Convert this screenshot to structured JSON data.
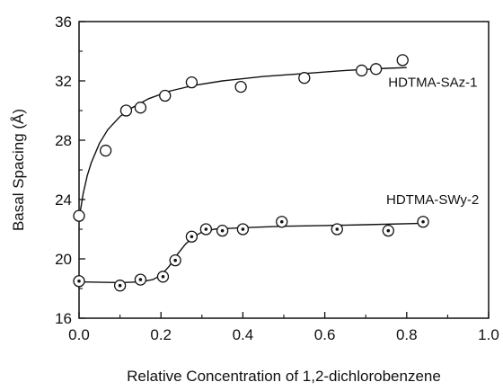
{
  "chart_data": {
    "type": "scatter",
    "title": "",
    "xlabel": "Relative Concentration of 1,2-dichlorobenzene",
    "ylabel": "Basal Spacing (Å)",
    "xlim": [
      0.0,
      1.0
    ],
    "ylim": [
      16,
      36
    ],
    "x_ticks": [
      0.0,
      0.2,
      0.4,
      0.6,
      0.8,
      1.0
    ],
    "x_tick_labels": [
      "0.0",
      "0.2",
      "0.4",
      "0.6",
      "0.8",
      "1.0"
    ],
    "y_ticks": [
      16,
      20,
      24,
      28,
      32,
      36
    ],
    "y_tick_labels": [
      "16",
      "20",
      "24",
      "28",
      "32",
      "36"
    ],
    "grid": false,
    "legend": "none",
    "series": [
      {
        "name": "HDTMA-SAz-1",
        "marker": "open-circle",
        "points": [
          [
            0.0,
            22.9
          ],
          [
            0.065,
            27.3
          ],
          [
            0.115,
            30.0
          ],
          [
            0.15,
            30.2
          ],
          [
            0.21,
            31.0
          ],
          [
            0.275,
            31.9
          ],
          [
            0.395,
            31.6
          ],
          [
            0.55,
            32.2
          ],
          [
            0.69,
            32.7
          ],
          [
            0.725,
            32.8
          ],
          [
            0.79,
            33.4
          ]
        ],
        "fit_curve": [
          [
            0.0,
            22.7
          ],
          [
            0.01,
            24.4
          ],
          [
            0.02,
            25.6
          ],
          [
            0.03,
            26.5
          ],
          [
            0.05,
            27.8
          ],
          [
            0.07,
            28.7
          ],
          [
            0.1,
            29.6
          ],
          [
            0.13,
            30.2
          ],
          [
            0.17,
            30.8
          ],
          [
            0.22,
            31.3
          ],
          [
            0.28,
            31.7
          ],
          [
            0.35,
            32.0
          ],
          [
            0.45,
            32.3
          ],
          [
            0.55,
            32.5
          ],
          [
            0.65,
            32.7
          ],
          [
            0.75,
            32.85
          ],
          [
            0.8,
            32.9
          ]
        ]
      },
      {
        "name": "HDTMA-SWy-2",
        "marker": "dotted-circle",
        "points": [
          [
            0.0,
            18.5
          ],
          [
            0.1,
            18.2
          ],
          [
            0.15,
            18.6
          ],
          [
            0.205,
            18.8
          ],
          [
            0.235,
            19.9
          ],
          [
            0.275,
            21.5
          ],
          [
            0.31,
            22.0
          ],
          [
            0.35,
            21.9
          ],
          [
            0.4,
            22.0
          ],
          [
            0.495,
            22.5
          ],
          [
            0.63,
            22.0
          ],
          [
            0.755,
            21.9
          ],
          [
            0.84,
            22.5
          ]
        ],
        "fit_curve": [
          [
            0.0,
            18.45
          ],
          [
            0.1,
            18.4
          ],
          [
            0.15,
            18.45
          ],
          [
            0.18,
            18.6
          ],
          [
            0.2,
            18.9
          ],
          [
            0.22,
            19.5
          ],
          [
            0.24,
            20.3
          ],
          [
            0.26,
            21.0
          ],
          [
            0.28,
            21.5
          ],
          [
            0.3,
            21.8
          ],
          [
            0.33,
            22.0
          ],
          [
            0.4,
            22.1
          ],
          [
            0.5,
            22.2
          ],
          [
            0.6,
            22.25
          ],
          [
            0.7,
            22.3
          ],
          [
            0.84,
            22.4
          ]
        ]
      }
    ],
    "annotations": [
      {
        "text": "HDTMA-SAz-1",
        "x": 0.755,
        "y": 31.6
      },
      {
        "text": "HDTMA-SWy-2",
        "x": 0.75,
        "y": 23.7
      }
    ]
  }
}
